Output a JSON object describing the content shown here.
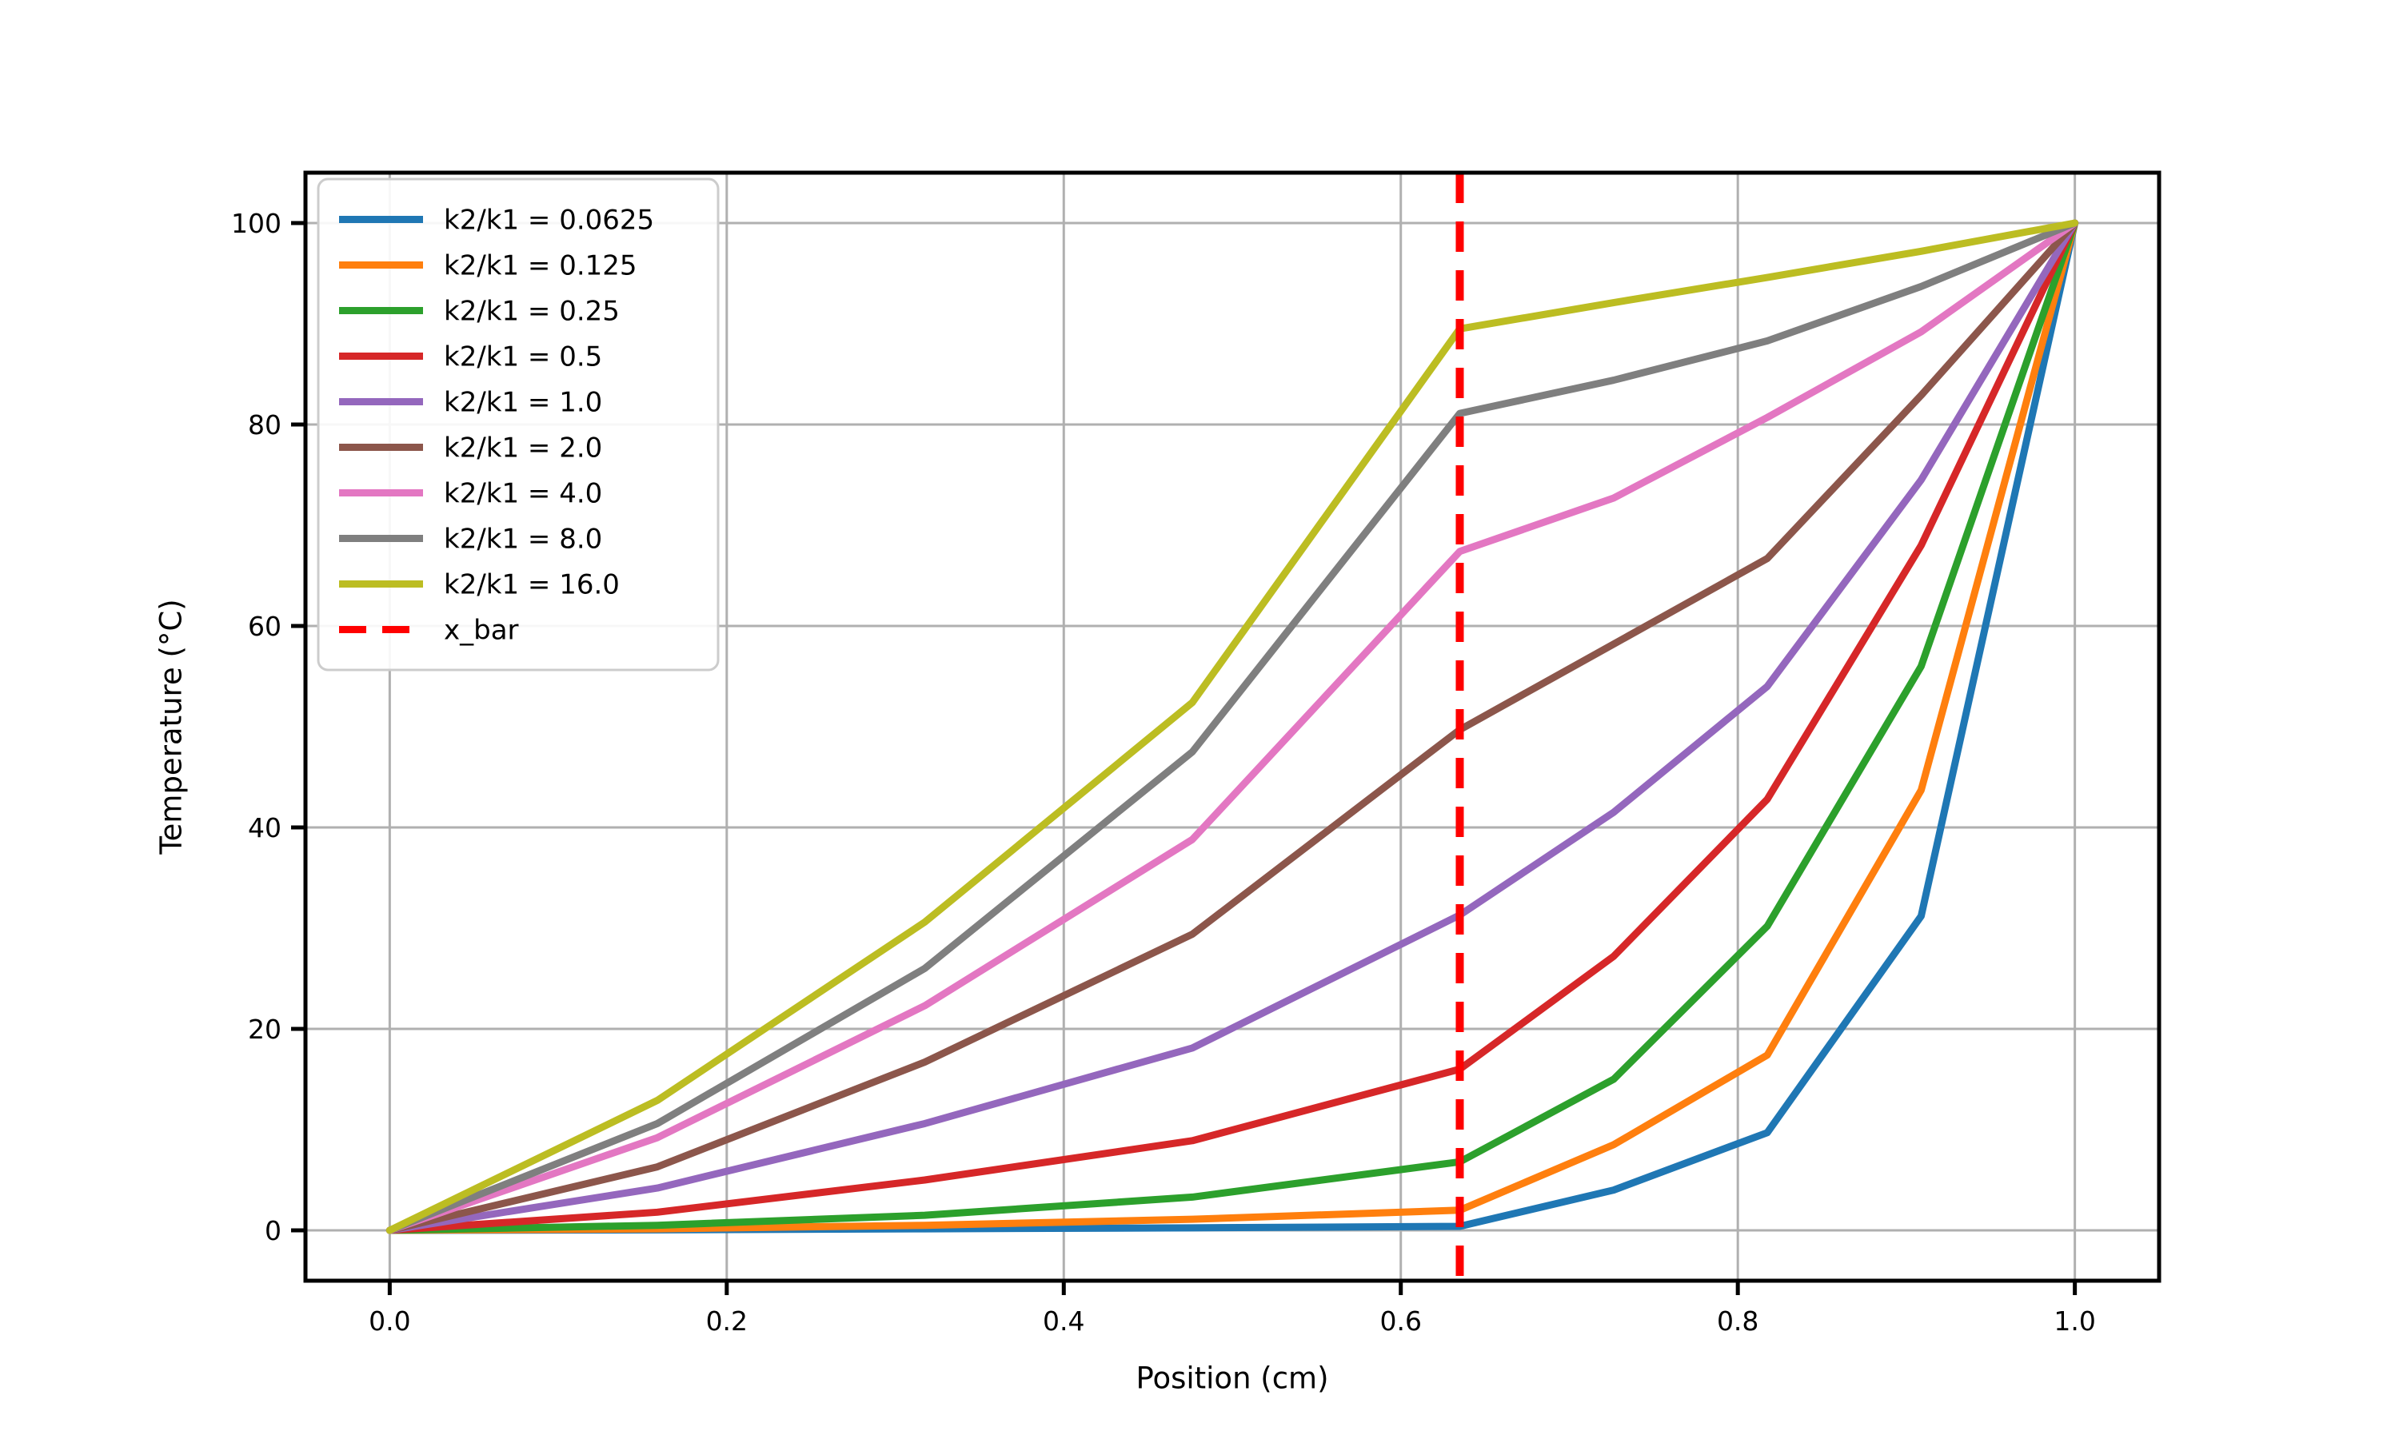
{
  "chart_data": {
    "type": "line",
    "title": "",
    "xlabel": "Position (cm)",
    "ylabel": "Temperature (°C)",
    "xlim": [
      -0.05,
      1.05
    ],
    "ylim": [
      -5,
      105
    ],
    "grid": true,
    "grid_color": "#b0b0b0",
    "spine_color": "#000000",
    "tick_color": "#000000",
    "legend_position": "upper left",
    "x_ticks": [
      0.0,
      0.2,
      0.4,
      0.6,
      0.8,
      1.0
    ],
    "x_tick_labels": [
      "0.0",
      "0.2",
      "0.4",
      "0.6",
      "0.8",
      "1.0"
    ],
    "y_ticks": [
      0,
      20,
      40,
      60,
      80,
      100
    ],
    "y_tick_labels": [
      "0",
      "20",
      "40",
      "60",
      "80",
      "100"
    ],
    "x": [
      0.0,
      0.1588,
      0.3175,
      0.4763,
      0.635,
      0.7263,
      0.8175,
      0.9088,
      1.0
    ],
    "series": [
      {
        "name": "k2/k1 = 0.0625",
        "color": "#1f77b4",
        "values": [
          0,
          0.05,
          0.15,
          0.25,
          0.4,
          4.0,
          9.7,
          31.2,
          100
        ]
      },
      {
        "name": "k2/k1 = 0.125",
        "color": "#ff7f0e",
        "values": [
          0,
          0.15,
          0.5,
          1.1,
          2.0,
          8.5,
          17.4,
          43.7,
          100
        ]
      },
      {
        "name": "k2/k1 = 0.25",
        "color": "#2ca02c",
        "values": [
          0,
          0.5,
          1.5,
          3.3,
          6.8,
          15.0,
          30.2,
          56.0,
          100
        ]
      },
      {
        "name": "k2/k1 = 0.5",
        "color": "#d62728",
        "values": [
          0,
          1.8,
          5.0,
          8.9,
          16.0,
          27.2,
          42.8,
          68.0,
          100
        ]
      },
      {
        "name": "k2/k1 = 1.0",
        "color": "#9467bd",
        "values": [
          0,
          4.2,
          10.6,
          18.1,
          31.3,
          41.5,
          54.0,
          74.5,
          100
        ]
      },
      {
        "name": "k2/k1 = 2.0",
        "color": "#8c564b",
        "values": [
          0,
          6.3,
          16.7,
          29.4,
          49.7,
          58.2,
          66.7,
          82.9,
          100
        ]
      },
      {
        "name": "k2/k1 = 4.0",
        "color": "#e377c2",
        "values": [
          0,
          9.2,
          22.3,
          38.8,
          67.4,
          72.7,
          80.7,
          89.2,
          100
        ]
      },
      {
        "name": "k2/k1 = 8.0",
        "color": "#7f7f7f",
        "values": [
          0,
          10.6,
          26.0,
          47.5,
          81.1,
          84.4,
          88.3,
          93.7,
          100
        ]
      },
      {
        "name": "k2/k1 = 16.0",
        "color": "#bcbd22",
        "values": [
          0,
          12.9,
          30.6,
          52.4,
          89.5,
          92.1,
          94.6,
          97.2,
          100
        ]
      }
    ],
    "vline": {
      "label": "x_bar",
      "x": 0.635,
      "color": "#ff0000",
      "style": "dashed"
    }
  }
}
